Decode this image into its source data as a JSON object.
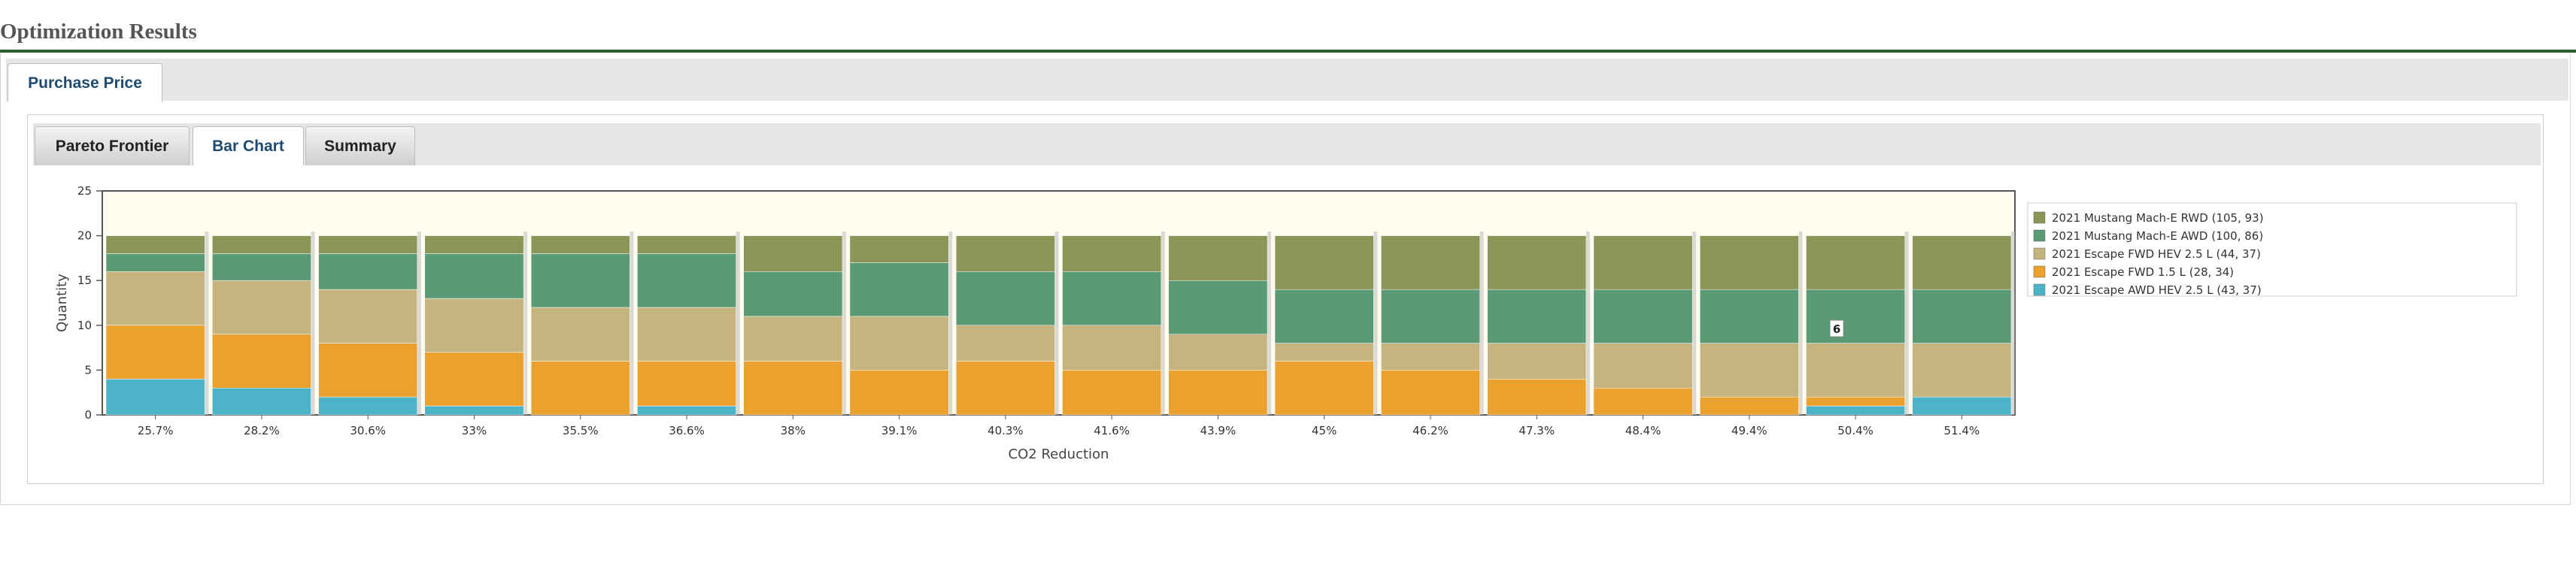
{
  "page": {
    "title": "Optimization Results"
  },
  "outer_tabs": [
    {
      "label": "Purchase Price",
      "active": true
    }
  ],
  "inner_tabs": [
    {
      "label": "Pareto Frontier",
      "active": false
    },
    {
      "label": "Bar Chart",
      "active": true
    },
    {
      "label": "Summary",
      "active": false
    }
  ],
  "colors": {
    "series": [
      "#8a9556",
      "#5a9a74",
      "#c5b47e",
      "#eaa12d",
      "#4cb3c8"
    ],
    "plot_bg": "#fffcf0",
    "title_rule": "#2e5e2e"
  },
  "chart_data": {
    "type": "bar",
    "stacked": true,
    "xlabel": "CO2 Reduction",
    "ylabel": "Quantity",
    "ylim": [
      0,
      25
    ],
    "yticks": [
      0,
      5,
      10,
      15,
      20,
      25
    ],
    "grid": false,
    "legend_position": "right",
    "categories": [
      "25.7%",
      "28.2%",
      "30.6%",
      "33%",
      "35.5%",
      "36.6%",
      "38%",
      "39.1%",
      "40.3%",
      "41.6%",
      "43.9%",
      "45%",
      "46.2%",
      "47.3%",
      "48.4%",
      "49.4%",
      "50.4%",
      "51.4%"
    ],
    "series": [
      {
        "name": "2021 Mustang Mach-E RWD (105, 93)",
        "values": [
          2,
          2,
          2,
          2,
          2,
          2,
          4,
          3,
          4,
          4,
          5,
          6,
          6,
          6,
          6,
          6,
          6,
          6
        ]
      },
      {
        "name": "2021 Mustang Mach-E AWD (100, 86)",
        "values": [
          2,
          3,
          4,
          5,
          6,
          6,
          5,
          6,
          6,
          6,
          6,
          6,
          6,
          6,
          6,
          6,
          6,
          6
        ]
      },
      {
        "name": "2021 Escape FWD HEV 2.5 L (44, 37)",
        "values": [
          6,
          6,
          6,
          6,
          6,
          6,
          5,
          6,
          4,
          5,
          4,
          2,
          3,
          4,
          5,
          6,
          6,
          6
        ]
      },
      {
        "name": "2021 Escape FWD 1.5 L (28, 34)",
        "values": [
          6,
          6,
          6,
          6,
          6,
          5,
          6,
          5,
          6,
          5,
          5,
          6,
          5,
          4,
          3,
          2,
          1,
          0
        ]
      },
      {
        "name": "2021 Escape AWD HEV 2.5 L (43, 37)",
        "values": [
          4,
          3,
          2,
          1,
          0,
          1,
          0,
          0,
          0,
          0,
          0,
          0,
          0,
          0,
          0,
          0,
          1,
          2
        ]
      }
    ],
    "tooltip": {
      "category": "50.4%",
      "series": "2021 Mustang Mach-E AWD (100, 86)",
      "value": "6"
    }
  }
}
